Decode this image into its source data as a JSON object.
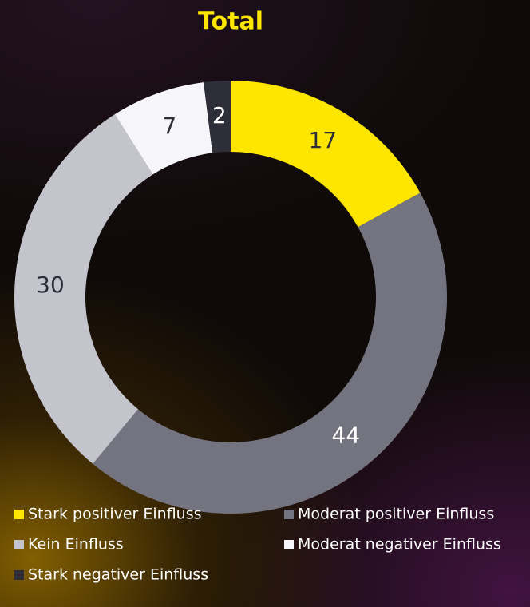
{
  "chart_data": {
    "type": "donut",
    "title": "Total",
    "categories": [
      "Stark positiver Einfluss",
      "Moderat positiver Einfluss",
      "Kein Einfluss",
      "Moderat negativer Einfluss",
      "Stark negativer Einfluss"
    ],
    "values": [
      17,
      44,
      30,
      7,
      2
    ],
    "colors": [
      "#ffe600",
      "#747480",
      "#c4c4cd",
      "#f6f6fa",
      "#2e2e38"
    ]
  }
}
